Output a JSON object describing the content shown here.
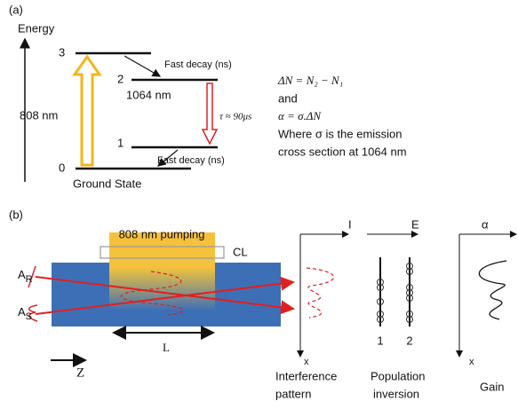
{
  "panel_a": {
    "label": "(a)",
    "axis_label": "Energy",
    "levels": [
      "3",
      "2",
      "1",
      "0"
    ],
    "pump_label": "808 nm",
    "laser_label": "1064 nm",
    "fast_decay_upper": "Fast decay (ns)",
    "fast_decay_lower": "Fast decay (ns)",
    "lifetime": "τ ≈ 90μs",
    "ground_state": "Ground State",
    "equations": [
      "ΔN = N₂ − N₁",
      "and",
      "α = σ.ΔN",
      "Where σ is the emission",
      "cross section at 1064 nm"
    ]
  },
  "panel_b": {
    "label": "(b)",
    "pump_label": "808 nm pumping",
    "lens_label": "CL",
    "beam_r": {
      "main": "A",
      "sub": "R"
    },
    "beam_s": {
      "main": "A",
      "sub": "S"
    },
    "length_label": "L",
    "z_label": "Z",
    "interference": {
      "axis_h": "I",
      "axis_v": "x",
      "caption": [
        "Interference",
        "pattern"
      ]
    },
    "population": {
      "axis_h": "E",
      "columns": [
        "1",
        "2"
      ],
      "caption": [
        "Population",
        "inversion"
      ]
    },
    "gain": {
      "axis_h": "α",
      "axis_v": "x",
      "caption": "Gain"
    }
  }
}
